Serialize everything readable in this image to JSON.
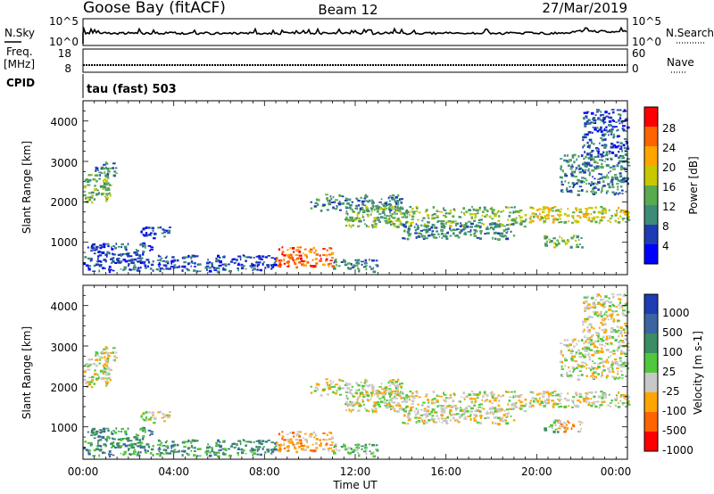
{
  "header": {
    "station": "Goose Bay (fitACF)",
    "beam": "Beam 12",
    "date": "27/Mar/2019"
  },
  "top_panels": {
    "nsky_label": "N.Sky",
    "nsearch_label": "N.Search",
    "nsky_ticks": [
      "10^5",
      "10^0"
    ],
    "nsearch_ticks": [
      "10^5",
      "10^0"
    ],
    "freq_label_line1": "Freq.",
    "freq_label_line2": "[MHz]",
    "freq_ticks": [
      "18",
      "8"
    ],
    "nave_label": "Nave",
    "nave_ticks": [
      "60",
      "0"
    ],
    "cpid_label": "CPID",
    "cpid_text": "tau (fast) 503"
  },
  "chart_data": [
    {
      "type": "heatmap",
      "name": "power",
      "ylabel": "Slant Range [km]",
      "yticks": [
        "1000",
        "2000",
        "3000",
        "4000"
      ],
      "ylim": [
        200,
        4500
      ],
      "xlim_hours": [
        0,
        24
      ],
      "colorbar_label": "Power [dB]",
      "colorbar_ticks": [
        "4",
        "8",
        "12",
        "16",
        "20",
        "24",
        "28"
      ],
      "colors": [
        "#0000ff",
        "#1e3cb4",
        "#3c8c78",
        "#5aaa50",
        "#c8c800",
        "#ffa500",
        "#ff6400",
        "#ff0000"
      ],
      "features": [
        {
          "start": 0.0,
          "end": 1.2,
          "range": [
            2000,
            2700
          ],
          "level": 3
        },
        {
          "start": 0.5,
          "end": 1.5,
          "range": [
            2600,
            3000
          ],
          "level": 2
        },
        {
          "start": 2.5,
          "end": 3.8,
          "range": [
            1100,
            1400
          ],
          "level": 1
        },
        {
          "start": 0.0,
          "end": 3.0,
          "range": [
            300,
            1000
          ],
          "level": 1
        },
        {
          "start": 3.0,
          "end": 8.5,
          "range": [
            300,
            700
          ],
          "level": 1
        },
        {
          "start": 8.5,
          "end": 11.0,
          "range": [
            400,
            900
          ],
          "level": 6
        },
        {
          "start": 11.0,
          "end": 13.0,
          "range": [
            300,
            600
          ],
          "level": 2
        },
        {
          "start": 10.0,
          "end": 14.0,
          "range": [
            1800,
            2200
          ],
          "level": 2
        },
        {
          "start": 11.5,
          "end": 19.5,
          "range": [
            1400,
            1900
          ],
          "level": 3
        },
        {
          "start": 14.0,
          "end": 19.0,
          "range": [
            1100,
            1500
          ],
          "level": 2
        },
        {
          "start": 19.5,
          "end": 24.0,
          "range": [
            1500,
            1900
          ],
          "level": 4
        },
        {
          "start": 20.3,
          "end": 22.0,
          "range": [
            900,
            1200
          ],
          "level": 3
        },
        {
          "start": 21.0,
          "end": 24.0,
          "range": [
            2200,
            3200
          ],
          "level": 2
        },
        {
          "start": 22.0,
          "end": 24.0,
          "range": [
            3200,
            4300
          ],
          "level": 1
        }
      ]
    },
    {
      "type": "heatmap",
      "name": "velocity",
      "ylabel": "Slant Range [km]",
      "yticks": [
        "1000",
        "2000",
        "3000",
        "4000"
      ],
      "ylim": [
        200,
        4500
      ],
      "xlim_hours": [
        0,
        24
      ],
      "colorbar_label": "Velocity [m s-1]",
      "colorbar_ticks": [
        "1000",
        "500",
        "100",
        "25",
        "-25",
        "-100",
        "-500",
        "-1000"
      ],
      "colors": [
        "#1e3cb4",
        "#3c64a0",
        "#3c8c64",
        "#50c83c",
        "#c8c8c8",
        "#ffa500",
        "#ff6400",
        "#ff0000"
      ],
      "features": [
        {
          "start": 0.0,
          "end": 1.2,
          "range": [
            2000,
            2700
          ],
          "level": 4
        },
        {
          "start": 0.5,
          "end": 1.5,
          "range": [
            2600,
            3000
          ],
          "level": 4
        },
        {
          "start": 2.5,
          "end": 3.8,
          "range": [
            1100,
            1400
          ],
          "level": 4
        },
        {
          "start": 0.0,
          "end": 3.0,
          "range": [
            300,
            1000
          ],
          "level": 2
        },
        {
          "start": 3.0,
          "end": 8.5,
          "range": [
            300,
            700
          ],
          "level": 2
        },
        {
          "start": 8.5,
          "end": 11.0,
          "range": [
            400,
            900
          ],
          "level": 5
        },
        {
          "start": 11.0,
          "end": 13.0,
          "range": [
            300,
            600
          ],
          "level": 3
        },
        {
          "start": 10.0,
          "end": 14.0,
          "range": [
            1800,
            2200
          ],
          "level": 4
        },
        {
          "start": 11.5,
          "end": 19.5,
          "range": [
            1400,
            1900
          ],
          "level": 4
        },
        {
          "start": 14.0,
          "end": 19.0,
          "range": [
            1100,
            1500
          ],
          "level": 4
        },
        {
          "start": 19.5,
          "end": 24.0,
          "range": [
            1500,
            1900
          ],
          "level": 4
        },
        {
          "start": 20.3,
          "end": 20.9,
          "range": [
            900,
            1200
          ],
          "level": 3
        },
        {
          "start": 20.9,
          "end": 22.0,
          "range": [
            900,
            1200
          ],
          "level": 5
        },
        {
          "start": 21.0,
          "end": 24.0,
          "range": [
            2200,
            3200
          ],
          "level": 4
        },
        {
          "start": 22.0,
          "end": 24.0,
          "range": [
            3200,
            4300
          ],
          "level": 4
        }
      ]
    }
  ],
  "x_axis": {
    "ticks": [
      "00:00",
      "04:00",
      "08:00",
      "12:00",
      "16:00",
      "20:00",
      "00:00"
    ],
    "label": "Time UT"
  }
}
